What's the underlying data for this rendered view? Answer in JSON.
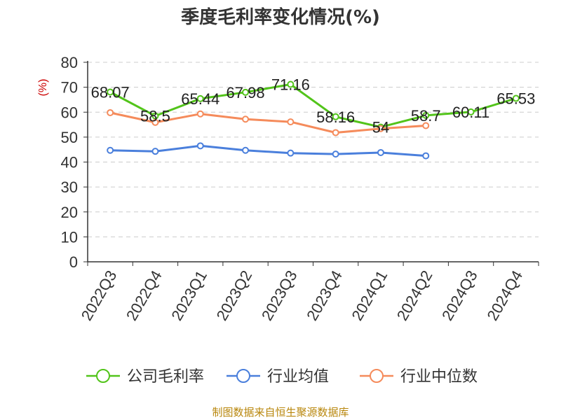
{
  "colors": {
    "company": "#52c41a",
    "industry_avg": "#4a7fdc",
    "industry_median": "#f58b5b",
    "source": "#b8860b",
    "unit": "#cc0000",
    "grid": "#cccccc"
  },
  "chart_data": {
    "type": "line",
    "title": "季度毛利率变化情况(%)",
    "ylabel": "(%)",
    "xlabel": "",
    "ylim": [
      0,
      80
    ],
    "yticks": [
      0,
      10,
      20,
      30,
      40,
      50,
      60,
      70,
      80
    ],
    "grid": true,
    "legend_position": "bottom",
    "categories": [
      "2022Q3",
      "2022Q4",
      "2023Q1",
      "2023Q2",
      "2023Q3",
      "2023Q4",
      "2024Q1",
      "2024Q2",
      "2024Q3",
      "2024Q4"
    ],
    "series": [
      {
        "name": "公司毛利率",
        "color": "#52c41a",
        "values": [
          68.07,
          58.5,
          65.44,
          67.98,
          71.16,
          58.16,
          54,
          58.7,
          60.11,
          65.53
        ],
        "labels": [
          "68.07",
          "58.5",
          "65.44",
          "67.98",
          "71.16",
          "58.16",
          "54",
          "58.7",
          "60.11",
          "65.53"
        ]
      },
      {
        "name": "行业均值",
        "color": "#4a7fdc",
        "values": [
          44.7,
          44.3,
          46.5,
          44.7,
          43.6,
          43.2,
          43.8,
          42.5,
          null,
          null
        ]
      },
      {
        "name": "行业中位数",
        "color": "#f58b5b",
        "values": [
          59.8,
          55.9,
          59.3,
          57.2,
          56.1,
          51.8,
          53.4,
          54.6,
          null,
          null
        ]
      }
    ]
  },
  "footer": {
    "source": "制图数据来自恒生聚源数据库"
  }
}
